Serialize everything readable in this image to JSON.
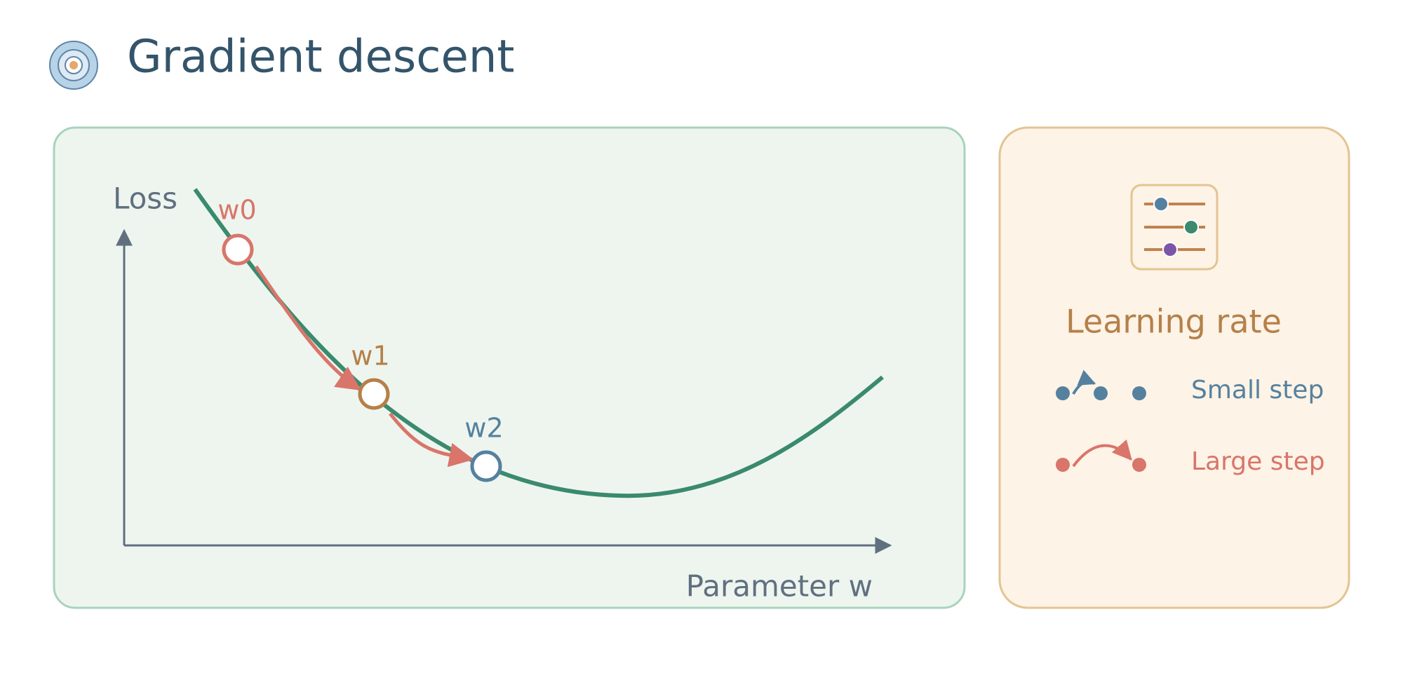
{
  "header": {
    "title": "Gradient descent"
  },
  "plot": {
    "y_axis_label": "Loss",
    "x_axis_label": "Parameter w",
    "points": [
      {
        "label": "w0"
      },
      {
        "label": "w1"
      },
      {
        "label": "w2"
      }
    ]
  },
  "legend": {
    "title": "Learning rate",
    "items": [
      {
        "label": "Small step"
      },
      {
        "label": "Large step"
      }
    ]
  }
}
